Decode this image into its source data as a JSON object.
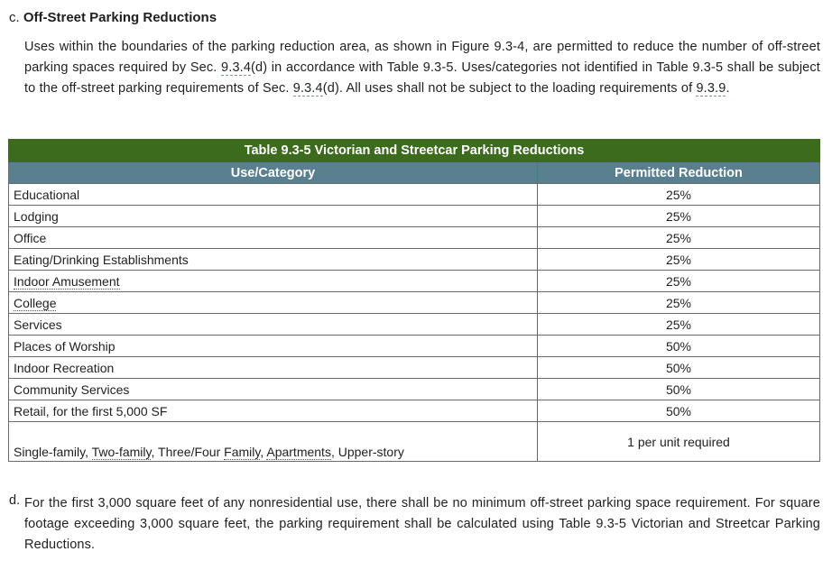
{
  "section_c": {
    "letter": "c.",
    "title": "Off-Street Parking Reductions",
    "p1": "Uses within the boundaries of the parking reduction area, as shown in Figure 9.3-4, are permitted to reduce the number of off-street parking spaces required by Sec. ",
    "ref1": "9.3.4",
    "p2": "(d) in accordance with Table 9.3-5. Uses/categories not identified in Table 9.3-5 shall be subject to the off-street parking requirements of Sec. ",
    "ref2": "9.3.4",
    "p3": "(d). All uses shall not be subject to the loading requirements of ",
    "ref3": "9.3.9",
    "p4": "."
  },
  "table": {
    "caption_prefix": "Table 9.3-5",
    "caption_rest": " Victorian and Streetcar Parking Reductions",
    "col_use": "Use/Category",
    "col_reduction": "Permitted Reduction",
    "rows": [
      {
        "use": "Educational",
        "reduction": "25%"
      },
      {
        "use": "Lodging",
        "reduction": "25%"
      },
      {
        "use": "Office",
        "reduction": "25%"
      },
      {
        "use": "Eating/Drinking Establishments",
        "reduction": "25%"
      },
      {
        "use": "Indoor Amusement",
        "reduction": "25%"
      },
      {
        "use": "College",
        "reduction": "25%"
      },
      {
        "use": "Services",
        "reduction": "25%"
      },
      {
        "use": "Places of Worship",
        "reduction": "50%"
      },
      {
        "use": "Indoor Recreation",
        "reduction": "50%"
      },
      {
        "use": "Community Services",
        "reduction": "50%"
      },
      {
        "use": "Retail, for the first 5,000 SF",
        "reduction": "50%"
      }
    ],
    "last_row": {
      "use_a": "Single-family, ",
      "use_b": "Two-family",
      "use_c": ", Three/Four ",
      "use_d": "Family",
      "use_e": ", ",
      "use_f": "Apartments",
      "use_g": ", Upper-story",
      "reduction": "1 per unit required"
    }
  },
  "section_d": {
    "letter": "d.",
    "text": "For the first 3,000 square feet of any nonresidential use, there shall be no minimum off-street parking space requirement. For square footage exceeding 3,000 square feet, the parking requirement shall be calculated using Table 9.3-5 Victorian and Streetcar Parking Reductions."
  }
}
